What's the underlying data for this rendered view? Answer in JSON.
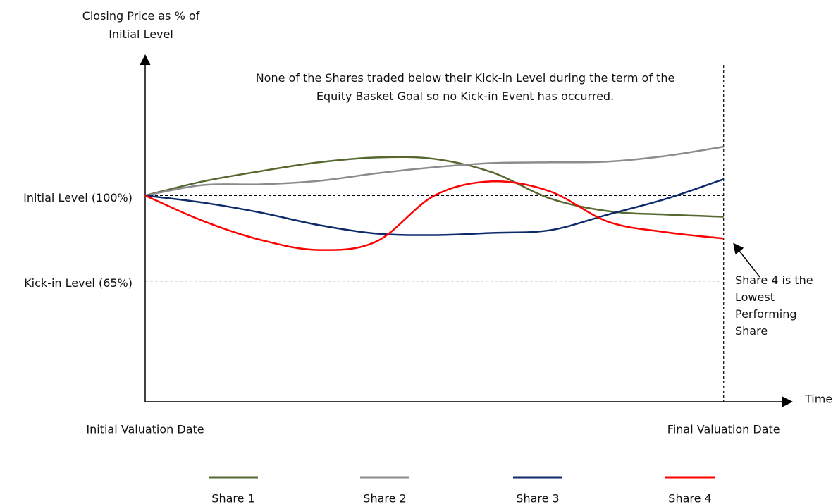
{
  "chart_data": {
    "type": "line",
    "ylabel": "Closing Price as % of Initial Level",
    "xlabel": "Time",
    "annotations": [
      "None of the Shares traded below their Kick-in Level during the term of the Equity Basket Goal so no Kick-in Event has occurred.",
      "Share 4 is the Lowest Performing Share"
    ],
    "x": [
      0,
      1,
      2,
      3,
      4,
      5,
      6,
      7,
      8,
      9,
      10
    ],
    "xlim": [
      0,
      11.1
    ],
    "xticks": [
      {
        "value": 0,
        "label": "Initial Valuation Date"
      },
      {
        "value": 10,
        "label": "Final Valuation Date"
      }
    ],
    "ylim": [
      15.5,
      157
    ],
    "yticks": [
      {
        "value": 65,
        "label": "Kick-in Level (65%)"
      },
      {
        "value": 100,
        "label": "Initial Level (100%)"
      }
    ],
    "series": [
      {
        "name": "Share 1",
        "color": "#56682f",
        "values": [
          100,
          105.8,
          110,
          113.6,
          115.6,
          115,
          109.5,
          98.8,
          93.6,
          92.2,
          91.3
        ]
      },
      {
        "name": "Share 2",
        "color": "#8c8c8c",
        "values": [
          100,
          104.3,
          104.6,
          106,
          109.1,
          111.6,
          113.3,
          113.6,
          113.9,
          116.2,
          120
        ]
      },
      {
        "name": "Share 3",
        "color": "#0d2a6b",
        "values": [
          100,
          97.1,
          93,
          87.9,
          84.4,
          83.8,
          84.7,
          85.8,
          92.2,
          98.6,
          106.7
        ]
      },
      {
        "name": "Share 4",
        "color": "#ff0000",
        "values": [
          100,
          89.6,
          81.8,
          77.7,
          81.2,
          100,
          105.8,
          101.7,
          89.3,
          85,
          82.4
        ]
      }
    ]
  }
}
